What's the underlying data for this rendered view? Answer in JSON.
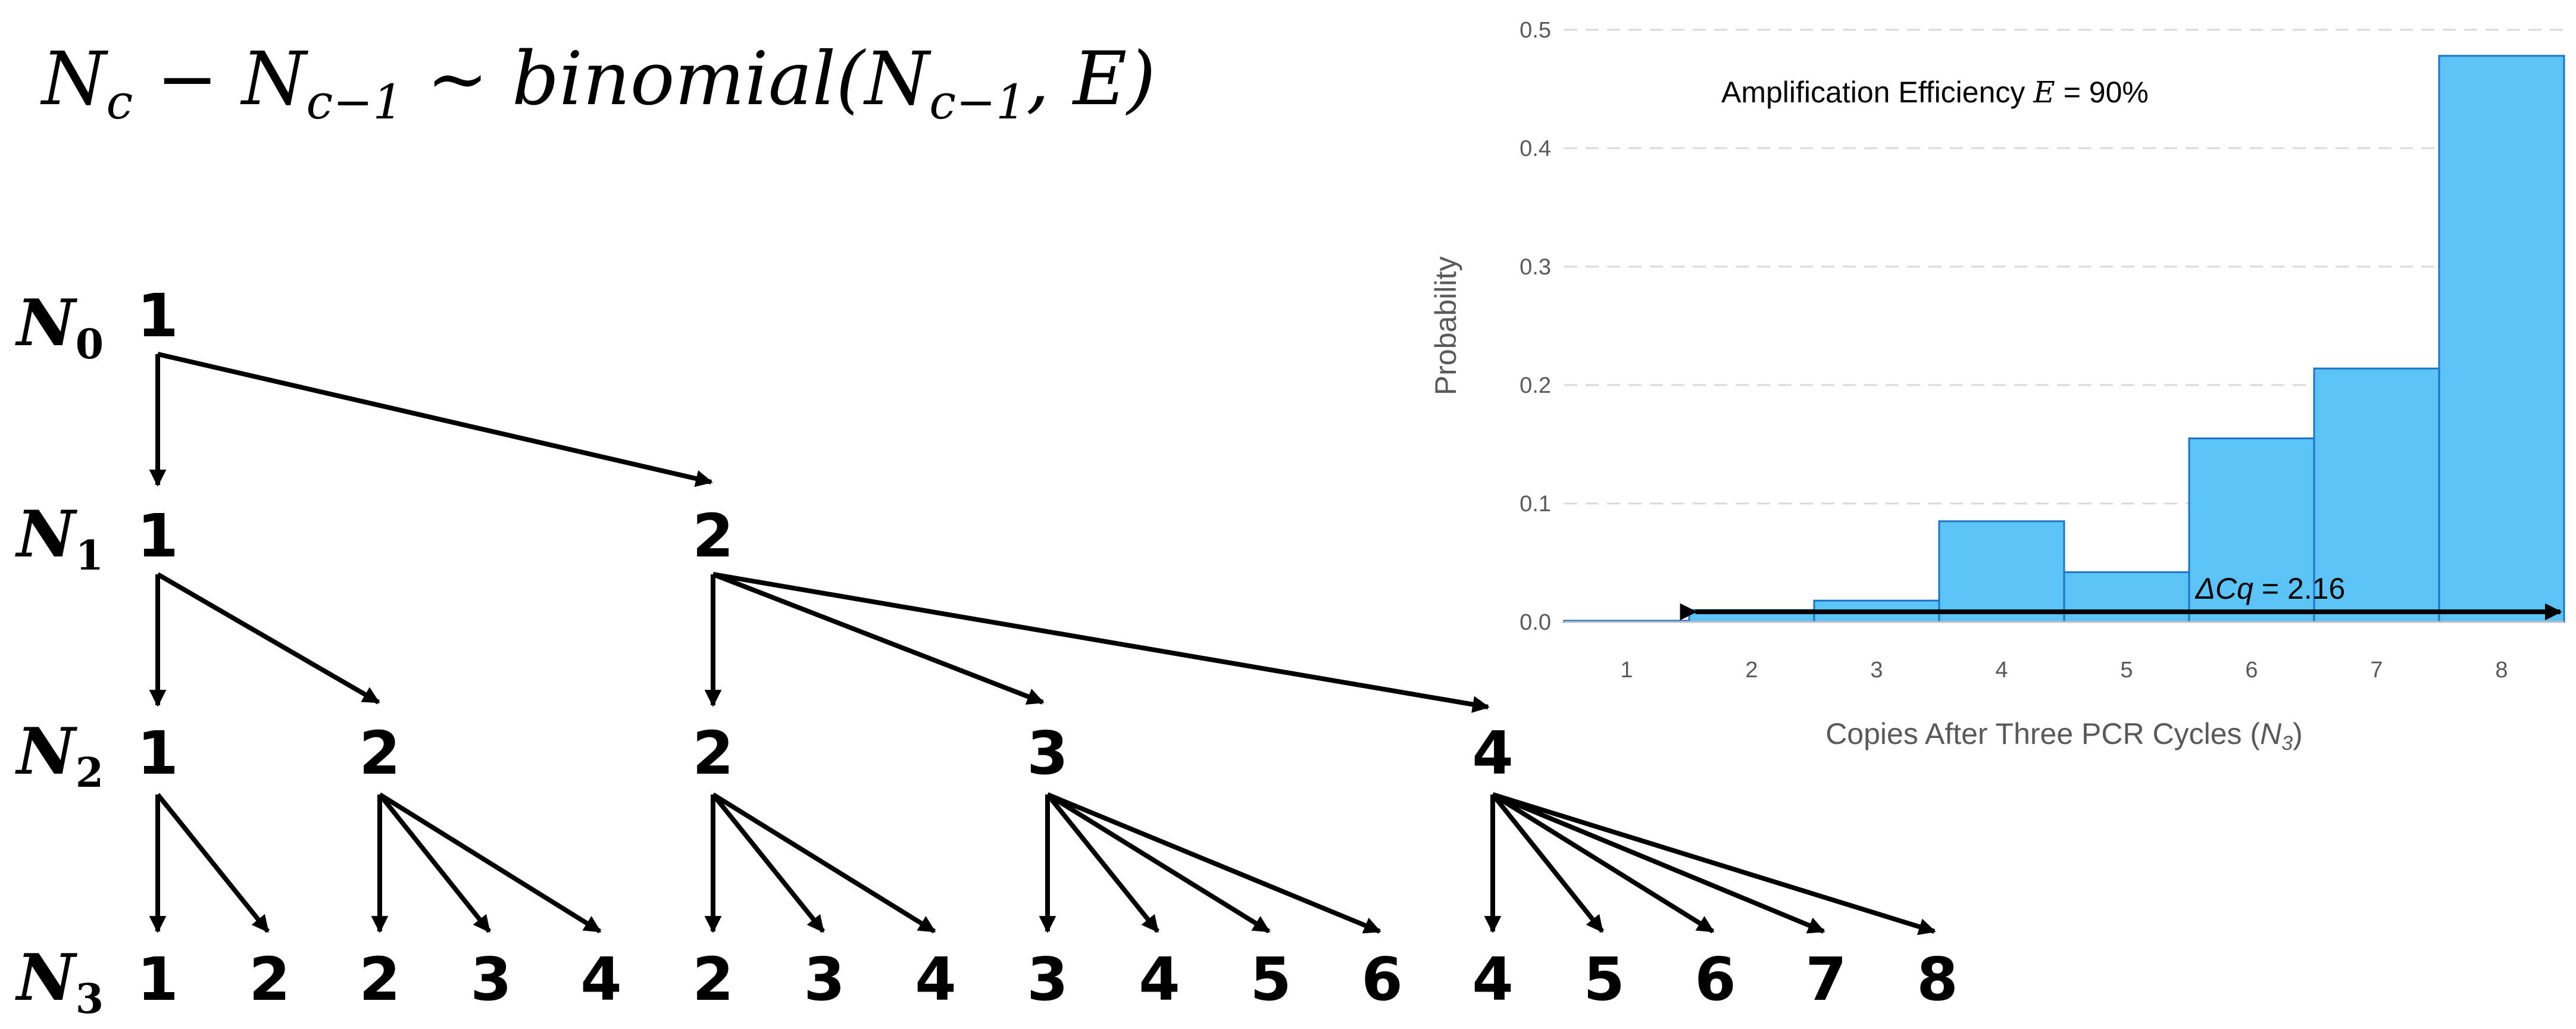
{
  "formula": {
    "lhs_a": "N",
    "lhs_a_sub": "c",
    "minus": " − ",
    "lhs_b": "N",
    "lhs_b_sub": "c−1",
    "tilde": " ~ ",
    "func": "binomial(",
    "arg1": "N",
    "arg1_sub": "c−1",
    "rest": ", E)"
  },
  "tree": {
    "level_labels": [
      {
        "main": "N",
        "sub": "0"
      },
      {
        "main": "N",
        "sub": "1"
      },
      {
        "main": "N",
        "sub": "2"
      },
      {
        "main": "N",
        "sub": "3"
      }
    ],
    "levels": [
      [
        "1"
      ],
      [
        "1",
        "2"
      ],
      [
        "1",
        "2",
        "2",
        "3",
        "4"
      ],
      [
        "1",
        "2",
        "2",
        "3",
        "4",
        "2",
        "3",
        "4",
        "3",
        "4",
        "5",
        "6",
        "4",
        "5",
        "6",
        "7",
        "8"
      ]
    ]
  },
  "chart_data": {
    "type": "bar",
    "categories": [
      "1",
      "2",
      "3",
      "4",
      "5",
      "6",
      "7",
      "8"
    ],
    "values": [
      0.001,
      0.01,
      0.018,
      0.085,
      0.042,
      0.155,
      0.214,
      0.478
    ],
    "xlabel": "Copies After Three PCR Cycles (N3)",
    "ylabel": "Probability",
    "ylim": [
      0,
      0.5
    ],
    "yticks": [
      "0.0",
      "0.1",
      "0.2",
      "0.3",
      "0.4",
      "0.5"
    ],
    "grid": true,
    "bar_color": "#5bc3f5",
    "bar_edge": "#1f73c4",
    "annotations": {
      "efficiency_text": "Amplification Efficiency ",
      "efficiency_var": "E",
      "efficiency_value": " = 90%",
      "delta_label": "ΔCq",
      "delta_value": " = 2.16"
    }
  }
}
